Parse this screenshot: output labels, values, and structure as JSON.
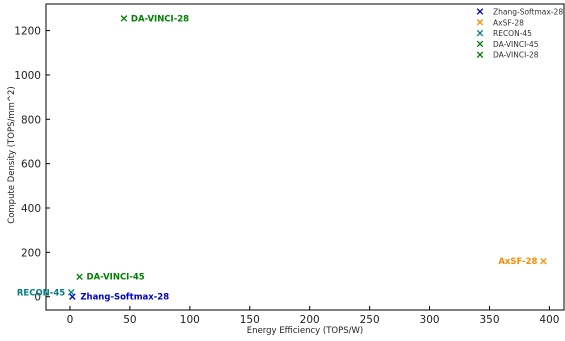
{
  "chart_data": {
    "type": "scatter",
    "title": "",
    "xlabel": "Energy Efficiency (TOPS/W)",
    "ylabel": "Compute Density (TOPS/mm^2)",
    "xlim": [
      -20,
      413
    ],
    "ylim": [
      -60,
      1320
    ],
    "xticks": [
      0,
      50,
      100,
      150,
      200,
      250,
      300,
      350,
      400
    ],
    "yticks": [
      0,
      200,
      400,
      600,
      800,
      1000,
      1200
    ],
    "grid": false,
    "legend_position": "top-right",
    "series": [
      {
        "name": "Zhang-Softmax-28",
        "color": "#0000cc",
        "marker": "x",
        "points": [
          {
            "x": 2,
            "y": 0,
            "label": "Zhang-Softmax-28"
          }
        ]
      },
      {
        "name": "AxSF-28",
        "color": "#ff8c00",
        "marker": "x",
        "points": [
          {
            "x": 395,
            "y": 160,
            "label": "AxSF-28"
          }
        ]
      },
      {
        "name": "RECON-45",
        "color": "#008080",
        "marker": "x",
        "points": [
          {
            "x": 1,
            "y": 20,
            "label": "RECON-45"
          }
        ]
      },
      {
        "name": "DA-VINCI-45",
        "color": "#008000",
        "marker": "x",
        "points": [
          {
            "x": 8,
            "y": 90,
            "label": "DA-VINCI-45"
          }
        ]
      },
      {
        "name": "DA-VINCI-28",
        "color": "#008000",
        "marker": "x",
        "points": [
          {
            "x": 45,
            "y": 1255,
            "label": "DA-VINCI-28"
          }
        ]
      }
    ]
  }
}
